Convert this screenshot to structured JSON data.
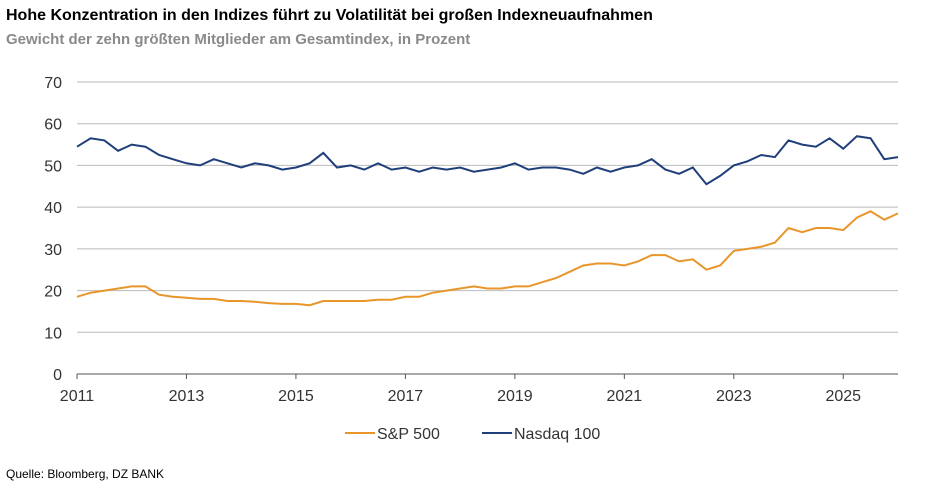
{
  "chart_data": {
    "type": "line",
    "title": "Hohe Konzentration in den Indizes führt zu Volatilität bei großen Indexneuaufnahmen",
    "subtitle": "Gewicht der zehn größten Mitglieder am Gesamtindex, in Prozent",
    "source": "Quelle: Bloomberg, DZ BANK",
    "x": [
      2011,
      2011.25,
      2011.5,
      2011.75,
      2012,
      2012.25,
      2012.5,
      2012.75,
      2013,
      2013.25,
      2013.5,
      2013.75,
      2014,
      2014.25,
      2014.5,
      2014.75,
      2015,
      2015.25,
      2015.5,
      2015.75,
      2016,
      2016.25,
      2016.5,
      2016.75,
      2017,
      2017.25,
      2017.5,
      2017.75,
      2018,
      2018.25,
      2018.5,
      2018.75,
      2019,
      2019.25,
      2019.5,
      2019.75,
      2020,
      2020.25,
      2020.5,
      2020.75,
      2021,
      2021.25,
      2021.5,
      2021.75,
      2022,
      2022.25,
      2022.5,
      2022.75,
      2023,
      2023.25,
      2023.5,
      2023.75,
      2024,
      2024.25,
      2024.5,
      2024.75,
      2025,
      2025.25,
      2025.5,
      2025.75,
      2026
    ],
    "series": [
      {
        "name": "S&P 500",
        "color": "#e8962a",
        "values": [
          18.5,
          19.5,
          20,
          20.5,
          21,
          21,
          19,
          18.5,
          18.3,
          18,
          18,
          17.5,
          17.5,
          17.3,
          17,
          16.8,
          16.8,
          16.5,
          17.5,
          17.5,
          17.5,
          17.5,
          17.8,
          17.8,
          18.5,
          18.5,
          19.5,
          20,
          20.5,
          21,
          20.5,
          20.5,
          21,
          21,
          22,
          23,
          24.5,
          26,
          26.5,
          26.5,
          26,
          27,
          28.5,
          28.5,
          27,
          27.5,
          25,
          26,
          29.5,
          30,
          30.5,
          31.5,
          35,
          34,
          35,
          35,
          34.5,
          37.5,
          39,
          37,
          38.5
        ]
      },
      {
        "name": "Nasdaq 100",
        "color": "#1f3f7a",
        "values": [
          54.5,
          56.5,
          56,
          53.5,
          55,
          54.5,
          52.5,
          51.5,
          50.5,
          50,
          51.5,
          50.5,
          49.5,
          50.5,
          50,
          49,
          49.5,
          50.5,
          53,
          49.5,
          50,
          49,
          50.5,
          49,
          49.5,
          48.5,
          49.5,
          49,
          49.5,
          48.5,
          49,
          49.5,
          50.5,
          49,
          49.5,
          49.5,
          49,
          48,
          49.5,
          48.5,
          49.5,
          50,
          51.5,
          49,
          48,
          49.5,
          45.5,
          47.5,
          50,
          51,
          52.5,
          52,
          56,
          55,
          54.5,
          56.5,
          54,
          57,
          56.5,
          51.5,
          52
        ]
      }
    ],
    "xlim": [
      2011,
      2026
    ],
    "xticks": [
      2011,
      2013,
      2015,
      2017,
      2019,
      2021,
      2023,
      2025
    ],
    "ylim": [
      0,
      70
    ],
    "yticks": [
      0,
      10,
      20,
      30,
      40,
      50,
      60,
      70
    ],
    "grid": true
  }
}
